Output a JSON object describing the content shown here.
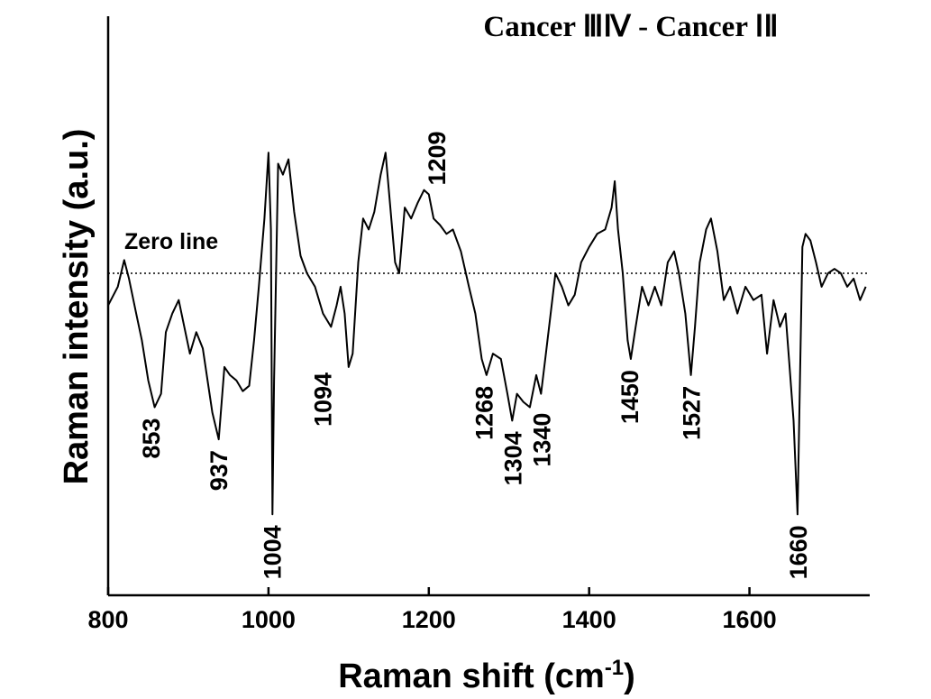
{
  "chart_data": {
    "type": "line",
    "title": "Cancer ⅢⅣ - Cancer ⅠⅡ",
    "xlabel": "Raman shift (cm",
    "xlabel_sup": "-1",
    "xlabel_close": ")",
    "ylabel": "Raman intensity (a.u.)",
    "xlim": [
      800,
      1750
    ],
    "ylim": [
      -1.0,
      1.0
    ],
    "xticks": [
      800,
      1000,
      1200,
      1400,
      1600
    ],
    "xtick_labels": [
      "800",
      "1000",
      "1200",
      "1400",
      "1600"
    ],
    "zero_line_label": "Zero line",
    "grid": false,
    "series": [
      {
        "x": [
          800,
          812,
          820,
          826,
          835,
          842,
          850,
          858,
          866,
          872,
          880,
          888,
          895,
          902,
          910,
          918,
          924,
          930,
          938,
          945,
          952,
          960,
          968,
          976,
          982,
          988,
          995,
          1000,
          1003,
          1005,
          1007,
          1012,
          1018,
          1025,
          1032,
          1040,
          1048,
          1058,
          1068,
          1078,
          1085,
          1090,
          1095,
          1100,
          1105,
          1112,
          1118,
          1125,
          1132,
          1140,
          1146,
          1152,
          1158,
          1163,
          1170,
          1178,
          1186,
          1194,
          1200,
          1206,
          1214,
          1222,
          1230,
          1240,
          1250,
          1258,
          1266,
          1272,
          1280,
          1290,
          1298,
          1304,
          1310,
          1318,
          1326,
          1334,
          1340,
          1346,
          1352,
          1358,
          1366,
          1374,
          1382,
          1390,
          1400,
          1410,
          1420,
          1428,
          1432,
          1436,
          1442,
          1448,
          1452,
          1458,
          1466,
          1474,
          1482,
          1490,
          1498,
          1506,
          1512,
          1520,
          1527,
          1532,
          1538,
          1546,
          1552,
          1560,
          1568,
          1576,
          1585,
          1595,
          1605,
          1615,
          1622,
          1630,
          1638,
          1645,
          1650,
          1655,
          1660,
          1663,
          1666,
          1670,
          1676,
          1683,
          1690,
          1698,
          1706,
          1714,
          1722,
          1730,
          1738,
          1745
        ],
        "y": [
          -0.12,
          -0.05,
          0.06,
          -0.02,
          -0.15,
          -0.25,
          -0.4,
          -0.5,
          -0.45,
          -0.22,
          -0.15,
          -0.1,
          -0.2,
          -0.3,
          -0.22,
          -0.28,
          -0.4,
          -0.52,
          -0.62,
          -0.35,
          -0.38,
          -0.4,
          -0.44,
          -0.42,
          -0.25,
          -0.05,
          0.25,
          0.55,
          0.2,
          -0.9,
          -0.4,
          0.5,
          0.45,
          0.52,
          0.28,
          0.08,
          0.0,
          -0.05,
          -0.15,
          -0.2,
          -0.12,
          -0.05,
          -0.15,
          -0.35,
          -0.3,
          0.05,
          0.25,
          0.2,
          0.28,
          0.45,
          0.55,
          0.3,
          0.05,
          0.0,
          0.3,
          0.25,
          0.32,
          0.38,
          0.36,
          0.25,
          0.22,
          0.18,
          0.2,
          0.1,
          -0.05,
          -0.15,
          -0.32,
          -0.38,
          -0.3,
          -0.32,
          -0.45,
          -0.55,
          -0.45,
          -0.48,
          -0.5,
          -0.38,
          -0.45,
          -0.3,
          -0.15,
          0.0,
          -0.05,
          -0.12,
          -0.08,
          0.05,
          0.12,
          0.18,
          0.2,
          0.3,
          0.42,
          0.2,
          0.0,
          -0.25,
          -0.32,
          -0.2,
          -0.05,
          -0.12,
          -0.05,
          -0.12,
          0.05,
          0.1,
          0.0,
          -0.15,
          -0.38,
          -0.2,
          0.05,
          0.2,
          0.25,
          0.1,
          -0.1,
          -0.05,
          -0.15,
          -0.05,
          -0.1,
          -0.08,
          -0.3,
          -0.1,
          -0.2,
          -0.15,
          -0.35,
          -0.55,
          -0.9,
          -0.4,
          0.12,
          0.18,
          0.15,
          0.05,
          -0.05,
          0.0,
          0.02,
          0.0,
          -0.05,
          -0.02,
          -0.1,
          -0.05
        ]
      }
    ],
    "peak_labels": [
      {
        "x": 853,
        "y": -0.5,
        "text": "853",
        "pos": "below"
      },
      {
        "x": 937,
        "y": -0.62,
        "text": "937",
        "pos": "below"
      },
      {
        "x": 1004,
        "y": -0.9,
        "text": "1004",
        "pos": "below"
      },
      {
        "x": 1094,
        "y": -0.35,
        "text": "1094",
        "pos": "below-left"
      },
      {
        "x": 1209,
        "y": 0.36,
        "text": "1209",
        "pos": "above"
      },
      {
        "x": 1268,
        "y": -0.38,
        "text": "1268",
        "pos": "below"
      },
      {
        "x": 1304,
        "y": -0.55,
        "text": "1304",
        "pos": "below"
      },
      {
        "x": 1340,
        "y": -0.48,
        "text": "1340",
        "pos": "below"
      },
      {
        "x": 1450,
        "y": -0.32,
        "text": "1450",
        "pos": "below"
      },
      {
        "x": 1527,
        "y": -0.38,
        "text": "1527",
        "pos": "below"
      },
      {
        "x": 1660,
        "y": -0.9,
        "text": "1660",
        "pos": "below"
      }
    ]
  }
}
